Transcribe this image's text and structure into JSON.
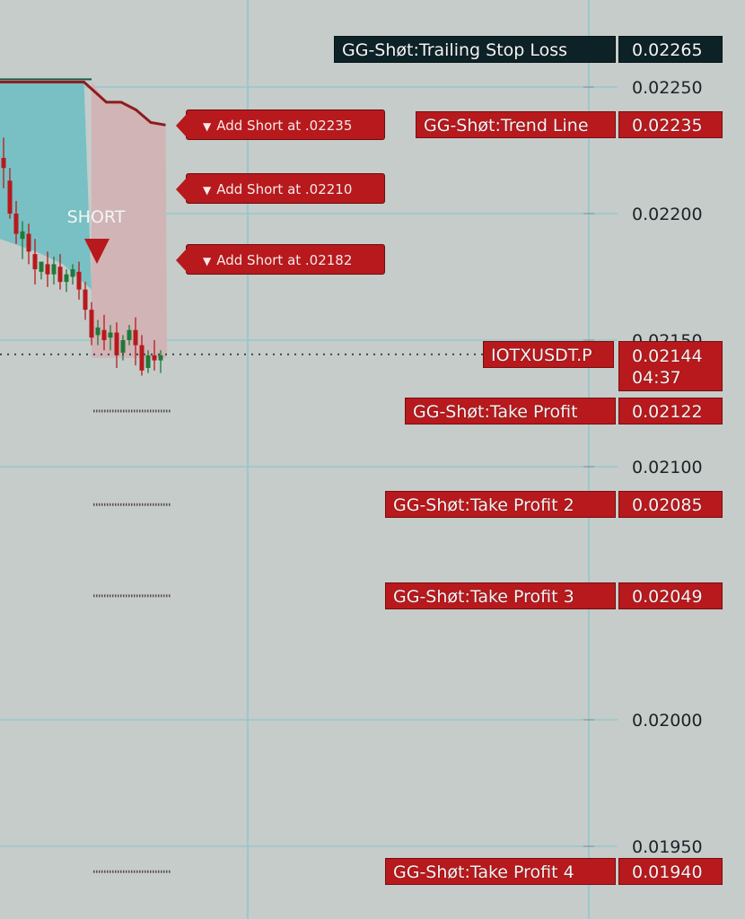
{
  "chart_data": {
    "type": "candlestick",
    "symbol": "IOTXUSDT.P",
    "signal_text": "SHORT",
    "y_ticks": [
      "0.02250",
      "0.02200",
      "0.02150",
      "0.02100",
      "0.02000",
      "0.01950"
    ],
    "current_price": {
      "value": "0.02144",
      "countdown": "04:37"
    },
    "levels": [
      {
        "name": "GG-Shøt:Trailing Stop Loss",
        "value": "0.02265",
        "style": "dark"
      },
      {
        "name": "GG-Shøt:Trend Line",
        "value": "0.02235",
        "style": "red"
      },
      {
        "name": "GG-Shøt:Take Profit",
        "value": "0.02122",
        "style": "red"
      },
      {
        "name": "GG-Shøt:Take Profit 2",
        "value": "0.02085",
        "style": "red"
      },
      {
        "name": "GG-Shøt:Take Profit 3",
        "value": "0.02049",
        "style": "red"
      },
      {
        "name": "GG-Shøt:Take Profit 4",
        "value": "0.01940",
        "style": "red"
      }
    ],
    "add_short_labels": [
      {
        "text": "Add Short at .02235",
        "price": 0.02235
      },
      {
        "text": "Add Short at .02210",
        "price": 0.0221
      },
      {
        "text": "Add Short at .02182",
        "price": 0.02182
      }
    ],
    "trailing_stop_line": [
      0.02252,
      0.02252,
      0.02252,
      0.02252,
      0.02252,
      0.02252,
      0.02244,
      0.02244,
      0.02241,
      0.02236,
      0.02235
    ],
    "candles": [
      [
        0.02222,
        0.0223,
        0.02218,
        0.0221
      ],
      [
        0.02213,
        0.02218,
        0.022,
        0.02198
      ],
      [
        0.022,
        0.02205,
        0.02192,
        0.02188
      ],
      [
        0.0219,
        0.02197,
        0.02193,
        0.02182
      ],
      [
        0.02192,
        0.02196,
        0.02185,
        0.0218
      ],
      [
        0.02184,
        0.0219,
        0.02178,
        0.02172
      ],
      [
        0.02177,
        0.02181,
        0.02181,
        0.02174
      ],
      [
        0.0218,
        0.02185,
        0.02176,
        0.02171
      ],
      [
        0.02176,
        0.02183,
        0.0218,
        0.02172
      ],
      [
        0.02179,
        0.02184,
        0.02173,
        0.0217
      ],
      [
        0.02173,
        0.02178,
        0.02176,
        0.02169
      ],
      [
        0.02175,
        0.0218,
        0.02178,
        0.02172
      ],
      [
        0.02177,
        0.02181,
        0.0217,
        0.02166
      ],
      [
        0.0217,
        0.02173,
        0.02162,
        0.02158
      ],
      [
        0.02162,
        0.02165,
        0.02151,
        0.02148
      ],
      [
        0.02152,
        0.02158,
        0.02155,
        0.02148
      ],
      [
        0.02154,
        0.0216,
        0.0215,
        0.02146
      ],
      [
        0.02151,
        0.02156,
        0.02153,
        0.02146
      ],
      [
        0.02153,
        0.02157,
        0.02144,
        0.02139
      ],
      [
        0.02145,
        0.02152,
        0.0215,
        0.02142
      ],
      [
        0.0215,
        0.02156,
        0.02154,
        0.02148
      ],
      [
        0.02154,
        0.02159,
        0.02148,
        0.0214
      ],
      [
        0.02148,
        0.02152,
        0.02138,
        0.02136
      ],
      [
        0.02139,
        0.02146,
        0.02144,
        0.02137
      ],
      [
        0.02144,
        0.0215,
        0.02142,
        0.02138
      ],
      [
        0.02142,
        0.02146,
        0.02144,
        0.02137
      ]
    ],
    "colors": {
      "background": "#c5ccca",
      "up": "#1f7a3a",
      "down": "#b7191d",
      "trailing_line": "#8e1b1d",
      "trailing_top": "#1c5a46",
      "teal_fill": "#6fbfc2",
      "pink_fill": "#d2b2b4",
      "grid": "#8fc6cc"
    }
  }
}
